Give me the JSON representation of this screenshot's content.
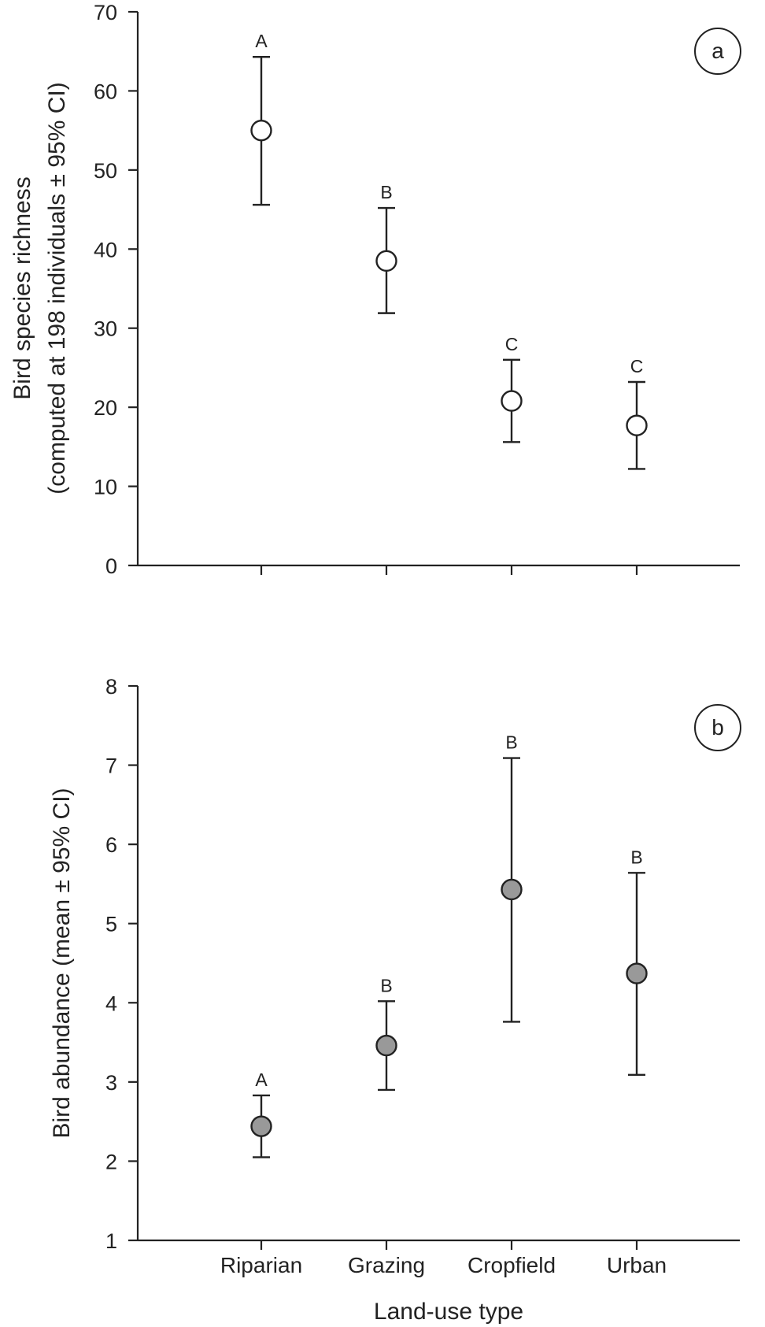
{
  "chart_data": [
    {
      "type": "scatter",
      "panel_label": "a",
      "ylabel_line1": "Bird species richness",
      "ylabel_line2": "(computed at 198 individuals ± 95% CI)",
      "xlabel": "",
      "ylim": [
        0,
        70
      ],
      "yticks": [
        0,
        10,
        20,
        30,
        40,
        50,
        60,
        70
      ],
      "categories": [
        "Riparian",
        "Grazing",
        "Cropfield",
        "Urban"
      ],
      "values": [
        55.0,
        38.5,
        20.8,
        17.7
      ],
      "ci_lower": [
        45.6,
        31.9,
        15.6,
        12.2
      ],
      "ci_upper": [
        64.3,
        45.2,
        26.0,
        23.2
      ],
      "group_labels": [
        "A",
        "B",
        "C",
        "C"
      ],
      "marker_fill": "#ffffff"
    },
    {
      "type": "scatter",
      "panel_label": "b",
      "ylabel": "Bird abundance (mean ± 95% CI)",
      "xlabel": "Land-use type",
      "ylim": [
        1,
        8
      ],
      "yticks": [
        1,
        2,
        3,
        4,
        5,
        6,
        7,
        8
      ],
      "categories": [
        "Riparian",
        "Grazing",
        "Cropfield",
        "Urban"
      ],
      "values": [
        2.44,
        3.46,
        5.43,
        4.37
      ],
      "ci_lower": [
        2.05,
        2.9,
        3.76,
        3.09
      ],
      "ci_upper": [
        2.83,
        4.02,
        7.09,
        5.64
      ],
      "group_labels": [
        "A",
        "B",
        "B",
        "B"
      ],
      "marker_fill": "#999999"
    }
  ]
}
